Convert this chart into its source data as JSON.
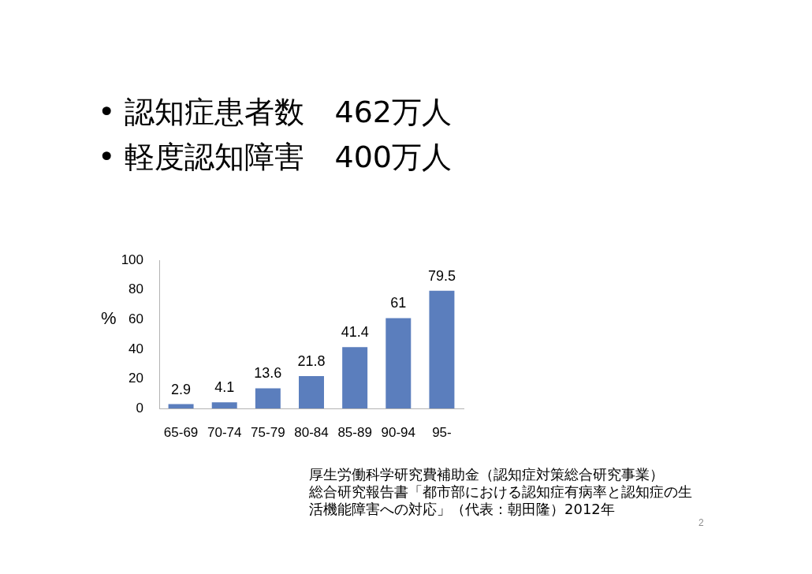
{
  "chart_data": {
    "type": "bar",
    "title": "• 認知症患者数　462万人",
    "subtitle": "• 軽度認知障害　400万人",
    "ylabel": "%",
    "categories": [
      "65-69",
      "70-74",
      "75-79",
      "80-84",
      "85-89",
      "90-94",
      "95-"
    ],
    "values": [
      2.9,
      4.1,
      13.6,
      21.8,
      41.4,
      61,
      79.5
    ],
    "color": "#5b7ebd",
    "ylim": [
      0,
      100
    ],
    "yticks": [
      0,
      20,
      40,
      60,
      80,
      100
    ],
    "grid": false,
    "data_labels": true,
    "annotations": [
      "厚生労働科学研究費補助金（認知症対策総合研究事業）",
      "総合研究報告書「都市部における認知症有病率と認知症の生",
      "活機能障害への対応」（代表：朝田隆）2012年",
      "2"
    ]
  }
}
